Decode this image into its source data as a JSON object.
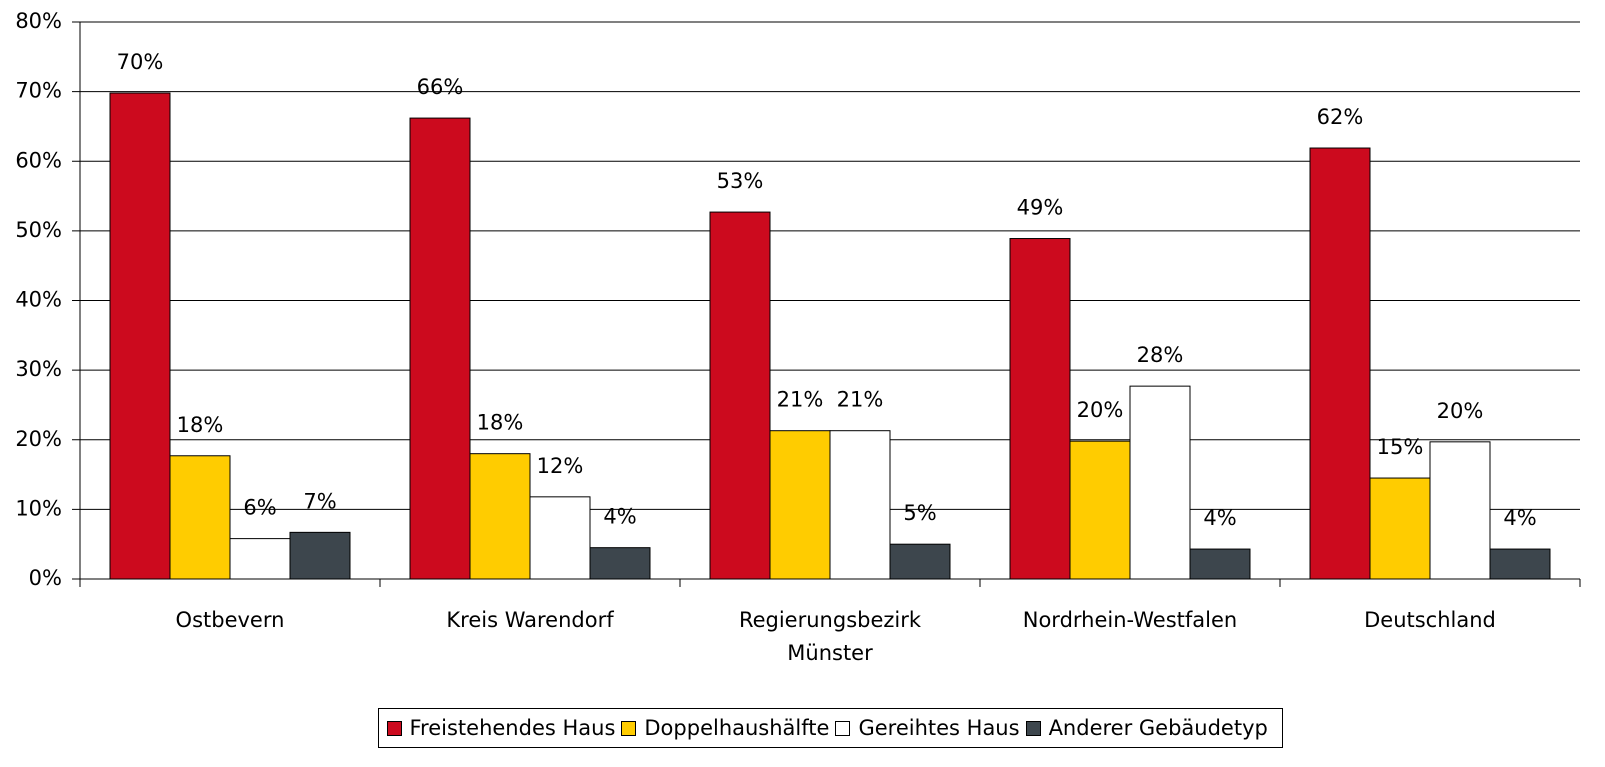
{
  "chart_data": {
    "type": "bar",
    "categories": [
      "Ostbevern",
      "Kreis Warendorf",
      "Regierungsbezirk Münster",
      "Nordrhein-Westfalen",
      "Deutschland"
    ],
    "series": [
      {
        "name": "Freistehendes Haus",
        "color": "#cc0a1e",
        "values": [
          69.8,
          66.2,
          52.7,
          48.9,
          61.9
        ],
        "value_labels": [
          "70%",
          "66%",
          "53%",
          "49%",
          "62%"
        ]
      },
      {
        "name": "Doppelhaushälfte",
        "color": "#ffcc00",
        "values": [
          17.7,
          18.0,
          21.3,
          19.8,
          14.5
        ],
        "value_labels": [
          "18%",
          "18%",
          "21%",
          "20%",
          "15%"
        ]
      },
      {
        "name": "Gereihtes Haus",
        "color": "#ffffff",
        "values": [
          5.8,
          11.8,
          21.3,
          27.7,
          19.7
        ],
        "value_labels": [
          "6%",
          "12%",
          "21%",
          "28%",
          "20%"
        ]
      },
      {
        "name": "Anderer Gebäudetyp",
        "color": "#3d464d",
        "values": [
          6.7,
          4.5,
          5.0,
          4.3,
          4.3
        ],
        "value_labels": [
          "7%",
          "4%",
          "5%",
          "4%",
          "4%"
        ]
      }
    ],
    "ylim": [
      0,
      80
    ],
    "yticks": [
      {
        "value": 0,
        "label": "0%"
      },
      {
        "value": 10,
        "label": "10%"
      },
      {
        "value": 20,
        "label": "20%"
      },
      {
        "value": 30,
        "label": "30%"
      },
      {
        "value": 40,
        "label": "40%"
      },
      {
        "value": 50,
        "label": "50%"
      },
      {
        "value": 60,
        "label": "60%"
      },
      {
        "value": 70,
        "label": "70%"
      },
      {
        "value": 80,
        "label": "80%"
      }
    ],
    "grid": true,
    "legend": "bottom"
  }
}
